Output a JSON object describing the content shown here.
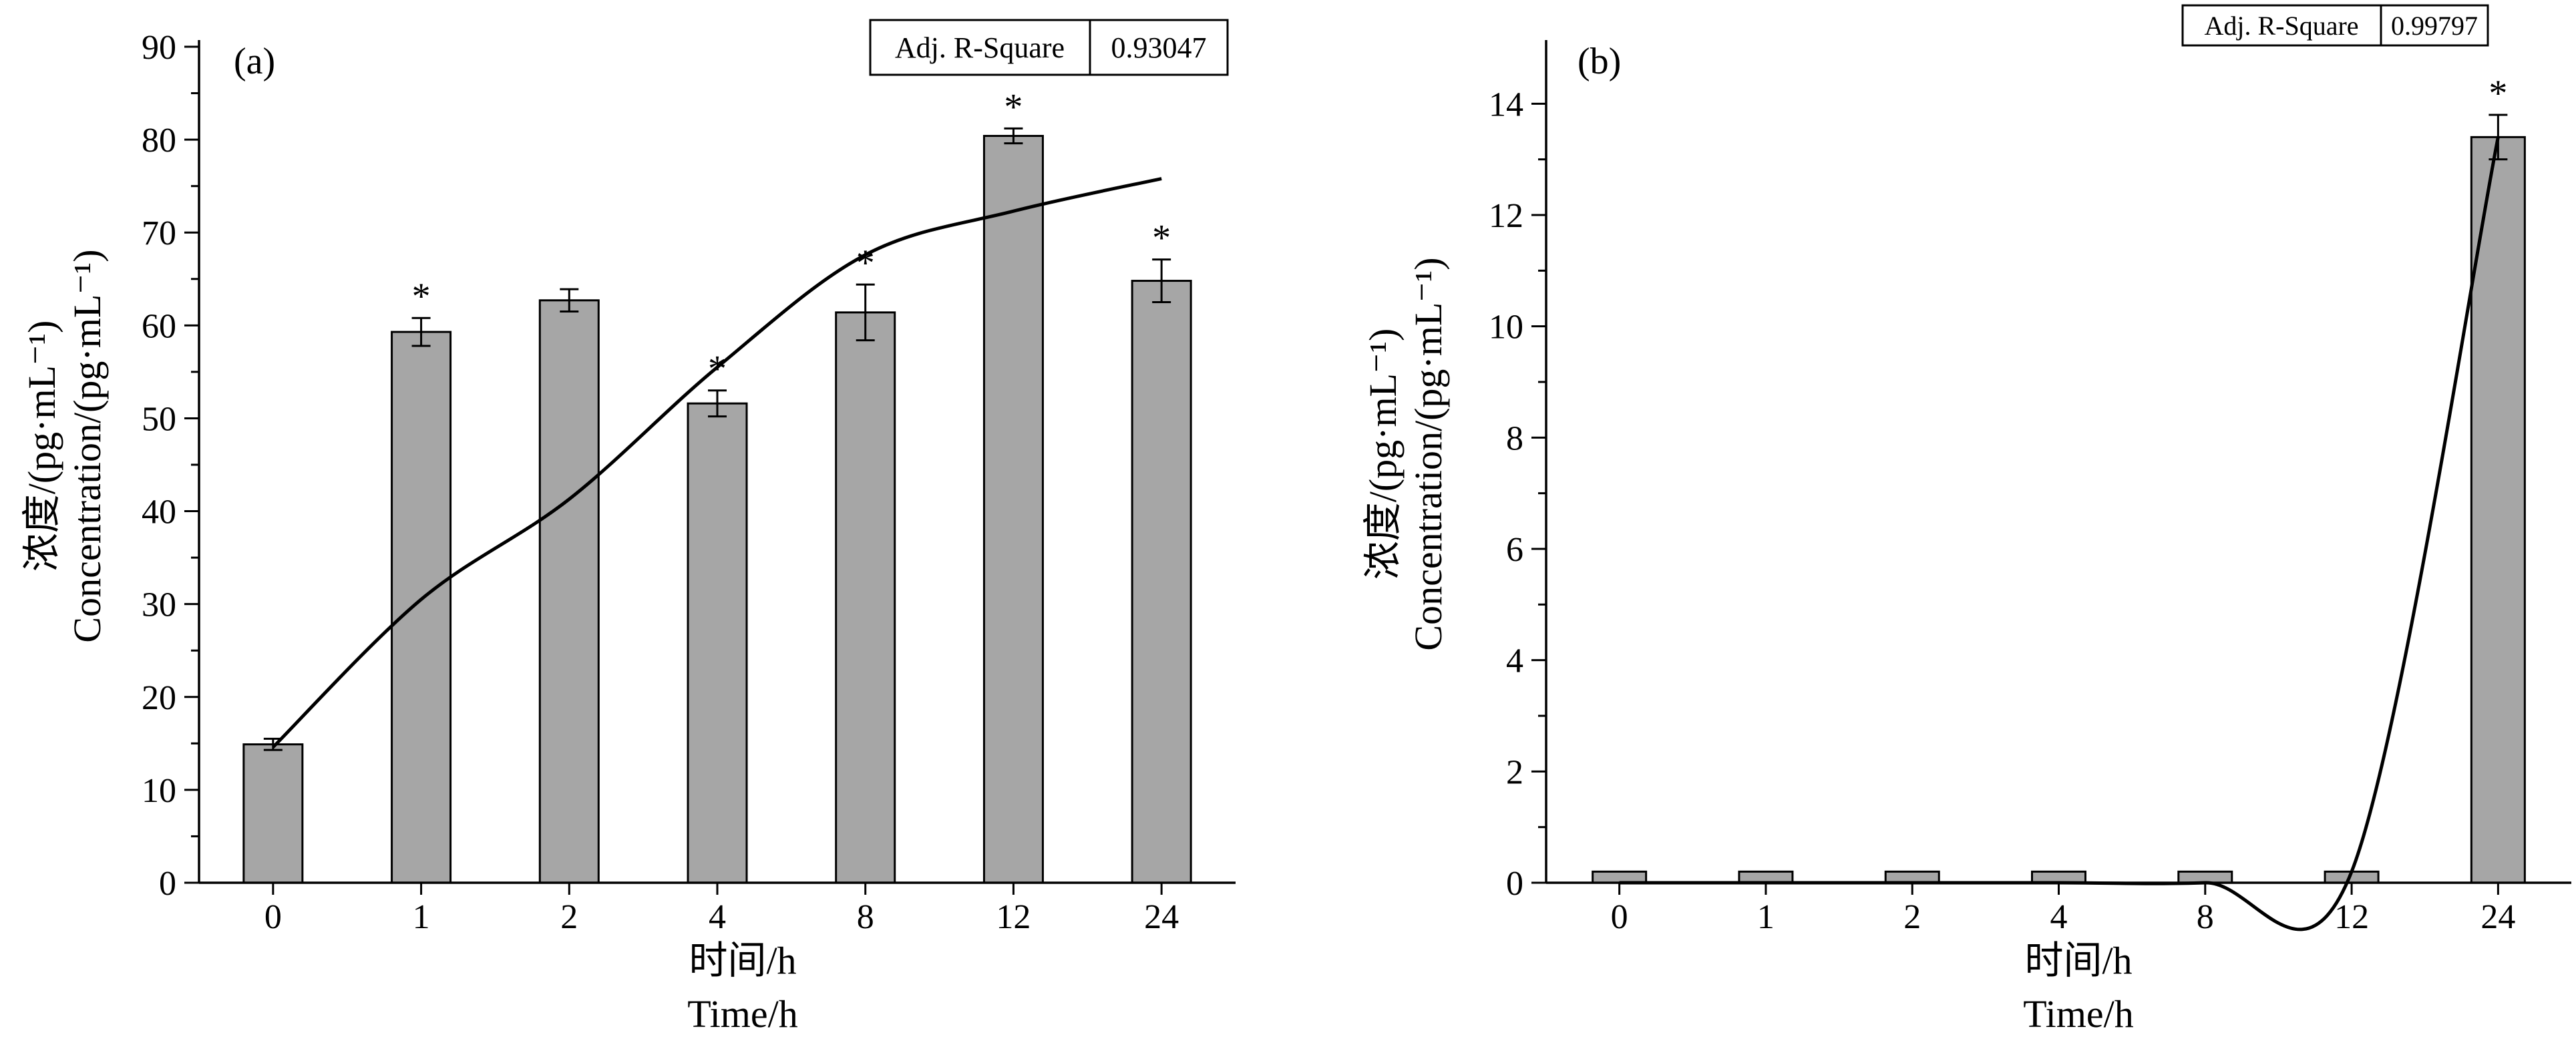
{
  "chart_data": [
    {
      "type": "bar",
      "panel_label": "(a)",
      "categories": [
        "0",
        "1",
        "2",
        "4",
        "8",
        "12",
        "24"
      ],
      "values": [
        14.9,
        59.3,
        62.7,
        51.6,
        61.4,
        80.4,
        64.8
      ],
      "errors": [
        0.6,
        1.5,
        1.2,
        1.4,
        3.0,
        0.8,
        2.3
      ],
      "significance": [
        "",
        "*",
        "",
        "*",
        "*",
        "*",
        "*"
      ],
      "ylim": [
        0,
        90
      ],
      "yticks": [
        "0",
        "10",
        "20",
        "30",
        "40",
        "50",
        "60",
        "70",
        "80",
        "90"
      ],
      "ylabel_cn": "浓度/(pg·mL⁻¹)",
      "ylabel_en": "Concentration/(pg·mL⁻¹)",
      "xlabel_cn": "时间/h",
      "xlabel_en": "Time/h",
      "fit": {
        "x_hours": [
          0,
          1,
          2,
          4,
          8,
          12,
          24
        ],
        "y": [
          14.6,
          30.5,
          41.3,
          55.5,
          67.6,
          72.3,
          75.8
        ]
      },
      "stat_box": {
        "label": "Adj. R-Square",
        "value": "0.93047"
      },
      "bar_color": "#a6a6a6"
    },
    {
      "type": "bar",
      "panel_label": "(b)",
      "categories": [
        "0",
        "1",
        "2",
        "4",
        "8",
        "12",
        "24"
      ],
      "values": [
        0.2,
        0.2,
        0.2,
        0.2,
        0.2,
        0.2,
        13.4
      ],
      "errors": [
        0,
        0,
        0,
        0,
        0,
        0,
        0.4
      ],
      "significance": [
        "",
        "",
        "",
        "",
        "",
        "",
        "*"
      ],
      "ylim": [
        0,
        15
      ],
      "yticks": [
        "0",
        "2",
        "4",
        "6",
        "8",
        "10",
        "12",
        "14"
      ],
      "ylabel_cn": "浓度/(pg·mL⁻¹)",
      "ylabel_en": "Concentration/(pg·mL⁻¹)",
      "xlabel_cn": "时间/h",
      "xlabel_en": "Time/h",
      "fit": {
        "x_hours": [
          0,
          1,
          2,
          4,
          8,
          12,
          24
        ],
        "y": [
          0.0,
          0.0,
          0.0,
          0.0,
          0.0,
          0.2,
          13.4
        ]
      },
      "stat_box": {
        "label": "Adj. R-Square",
        "value": "0.99797"
      },
      "bar_color": "#a6a6a6"
    }
  ]
}
